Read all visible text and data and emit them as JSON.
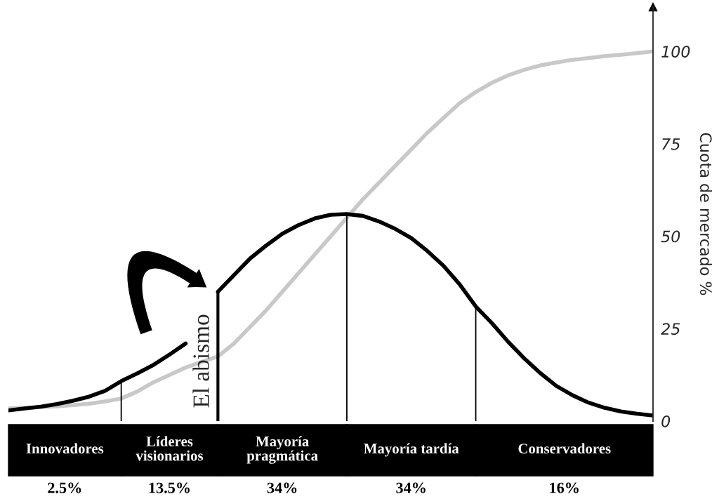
{
  "chart_data": {
    "type": "line",
    "ylabel": "Cuota de mercado %",
    "categories": [
      null,
      null,
      null,
      null,
      null,
      null,
      null,
      null,
      null,
      null,
      null,
      null,
      null,
      null,
      null,
      null,
      null,
      null,
      null,
      null,
      null,
      null,
      null,
      null,
      null,
      null,
      null,
      null,
      null,
      null,
      null,
      null,
      null,
      null,
      null,
      null,
      null,
      null,
      null,
      null,
      null
    ],
    "ylim": [
      0,
      112
    ],
    "yticks": [
      0,
      25,
      50,
      75,
      100
    ],
    "grid": false,
    "series": [
      {
        "color": "#c8c8c8",
        "values": [
          3.4,
          3.6,
          3.8,
          4.0,
          4.3,
          4.7,
          5.3,
          6.1,
          8.0,
          10.5,
          12.5,
          14.5,
          16,
          17.5,
          21,
          25.5,
          30,
          35,
          40,
          45,
          50,
          55,
          60,
          64.5,
          69,
          73.5,
          78,
          82,
          86,
          89,
          91.5,
          93.5,
          95,
          96.2,
          97,
          97.7,
          98.2,
          98.7,
          99.1,
          99.5,
          100
        ]
      },
      {
        "color": "#000000",
        "values": [
          2.9,
          3.4,
          3.9,
          4.6,
          5.5,
          6.6,
          8.2,
          10.8,
          12.9,
          15.2,
          18,
          21,
          null,
          35,
          39.5,
          44,
          47.5,
          50.7,
          53,
          54.8,
          55.8,
          56,
          55.5,
          54,
          52,
          49.5,
          46,
          42,
          37,
          31,
          26.5,
          21.5,
          17,
          13,
          9.5,
          7,
          5,
          3.6,
          2.6,
          2,
          1.5
        ]
      }
    ],
    "annotations": [
      "Innovadores",
      "Líderes\nvisionarios",
      "Mayoría\npragmática",
      "Mayoría tardía",
      "Conservadores",
      "2.5%",
      "13.5%",
      "34%",
      "34%",
      "16%",
      "El abismo"
    ]
  }
}
